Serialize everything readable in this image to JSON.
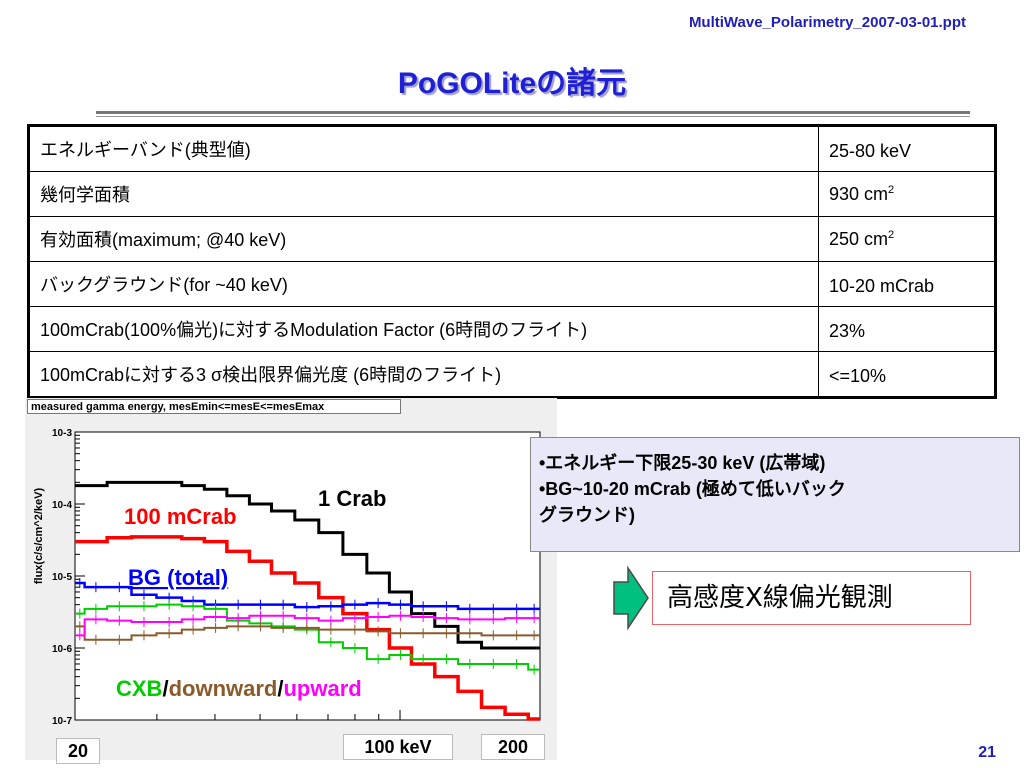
{
  "slide": {
    "filename": "MultiWave_Polarimetry_2007-03-01.ppt",
    "title": "PoGOLiteの諸元",
    "number": "21"
  },
  "spec_table": {
    "rows": [
      {
        "label": "エネルギーバンド(典型値)",
        "value": "25-80 keV",
        "value_unit_sup": ""
      },
      {
        "label": "幾何学面積",
        "value": "930 cm",
        "value_unit_sup": "2"
      },
      {
        "label": "有効面積(maximum; @40 keV)",
        "value": "250 cm",
        "value_unit_sup": "2"
      },
      {
        "label": "バックグラウンド(for ~40 keV)",
        "value": "10-20 mCrab",
        "value_unit_sup": ""
      },
      {
        "label": "100mCrab(100%偏光)に対するModulation Factor (6時間のフライト)",
        "value": "23%",
        "value_unit_sup": ""
      },
      {
        "label": "100mCrabに対する3 σ検出限界偏光度 (6時間のフライト)",
        "value": "<=10%",
        "value_unit_sup": ""
      }
    ]
  },
  "plot": {
    "header": "measured gamma energy, mesEmin<=mesE<=mesEmax",
    "ylabel": "flux(c/s/cm^2/keV)",
    "y_ticks": [
      "10-3",
      "10-4",
      "10-5",
      "10-6",
      "10-7"
    ],
    "x_ticks": {
      "left": "20",
      "mid": "100 keV",
      "right": "200"
    },
    "labels": {
      "crab_1": "1 Crab",
      "crab_100m": "100 mCrab",
      "bg_total": "BG (total)",
      "cxb": "CXB",
      "slash1": "/",
      "downward": "downward",
      "slash2": "/",
      "upward": "upward"
    },
    "colors": {
      "crab_1": "#000000",
      "crab_100m": "#ff0000",
      "bg_total": "#0000ff",
      "cxb": "#00cc00",
      "downward": "#8b5a2b",
      "upward": "#ff00ff"
    }
  },
  "chart_data": {
    "type": "line",
    "ylabel": "flux(c/s/cm^2/keV)",
    "y_log": true,
    "ylim": [
      1e-07,
      0.001
    ],
    "x_log": true,
    "xlim": [
      20,
      200
    ],
    "x_tick_labels": [
      "20",
      "100 keV",
      "200"
    ],
    "x": [
      20,
      22,
      25,
      28,
      32,
      36,
      40,
      45,
      50,
      56,
      63,
      71,
      80,
      90,
      100,
      112,
      126,
      141,
      159,
      178,
      200
    ],
    "series": [
      {
        "name": "1 Crab",
        "values": [
          0.00018,
          0.00018,
          0.0002,
          0.0002,
          0.0002,
          0.00018,
          0.00016,
          0.00013,
          0.0001,
          8e-05,
          6e-05,
          4e-05,
          2e-05,
          1.1e-05,
          6e-06,
          3e-06,
          2e-06,
          1.2e-06,
          1e-06,
          1e-06,
          1e-06
        ]
      },
      {
        "name": "100 mCrab",
        "values": [
          3e-05,
          3e-05,
          3.4e-05,
          3.5e-05,
          3.5e-05,
          3.3e-05,
          3e-05,
          2.2e-05,
          1.6e-05,
          1.1e-05,
          8e-06,
          5e-06,
          3e-06,
          1.8e-06,
          1e-06,
          6e-07,
          4e-07,
          2.5e-07,
          1.5e-07,
          1.2e-07,
          1e-07
        ]
      },
      {
        "name": "BG (total)",
        "values": [
          8e-06,
          7e-06,
          7e-06,
          5.5e-06,
          5e-06,
          4.5e-06,
          4e-06,
          4e-06,
          4e-06,
          4e-06,
          3.7e-06,
          3.8e-06,
          4e-06,
          4.2e-06,
          4e-06,
          3.8e-06,
          3.8e-06,
          3.5e-06,
          3.5e-06,
          3.5e-06,
          3.5e-06
        ]
      },
      {
        "name": "CXB",
        "values": [
          3e-06,
          3.5e-06,
          3.8e-06,
          3.8e-06,
          4e-06,
          3.8e-06,
          3.5e-06,
          2.4e-06,
          2.2e-06,
          2e-06,
          1.8e-06,
          1.2e-06,
          1e-06,
          7e-07,
          8e-07,
          7e-07,
          7e-07,
          6e-07,
          6e-07,
          6e-07,
          5e-07
        ]
      },
      {
        "name": "downward",
        "values": [
          2e-06,
          1.3e-06,
          1.3e-06,
          1.5e-06,
          1.6e-06,
          1.8e-06,
          1.9e-06,
          2e-06,
          2e-06,
          1.9e-06,
          1.9e-06,
          1.8e-06,
          1.8e-06,
          1.7e-06,
          1.6e-06,
          1.6e-06,
          1.6e-06,
          1.6e-06,
          1.5e-06,
          1.5e-06,
          1.5e-06
        ]
      },
      {
        "name": "upward",
        "values": [
          1.5e-06,
          2.5e-06,
          2.4e-06,
          2.3e-06,
          2.3e-06,
          2.5e-06,
          2.7e-06,
          2.6e-06,
          2.8e-06,
          2.8e-06,
          2.6e-06,
          2.4e-06,
          2.6e-06,
          2.7e-06,
          2.8e-06,
          2.7e-06,
          2.6e-06,
          2.5e-06,
          2.5e-06,
          2.6e-06,
          2.6e-06
        ]
      }
    ]
  },
  "notes": {
    "line1": "•エネルギー下限25-30 keV (広帯域)",
    "line2": "•BG~10-20 mCrab (極めて低いバック",
    "line3": "グラウンド)"
  },
  "callout": {
    "text": "高感度X線偏光観測",
    "arrow_color": "#00c080"
  }
}
